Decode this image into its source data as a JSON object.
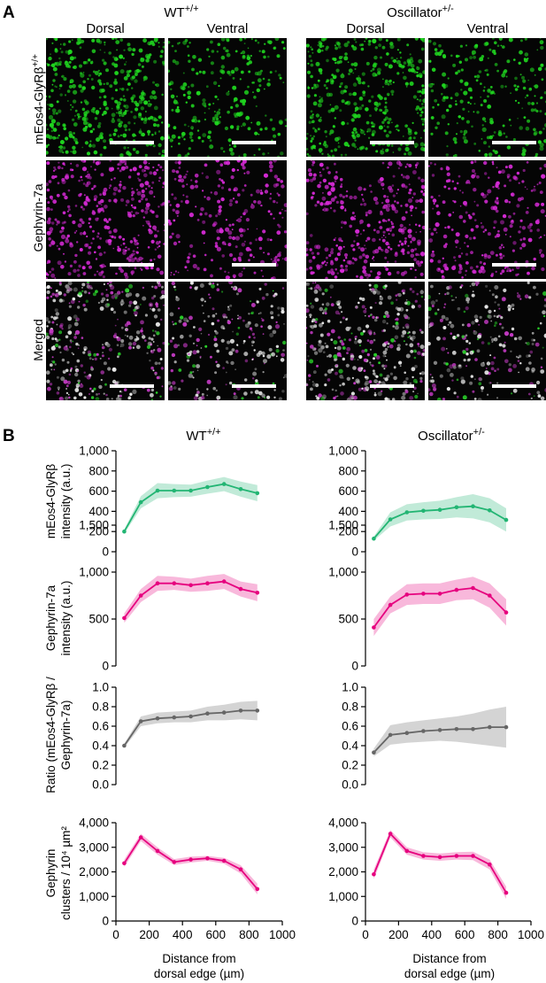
{
  "panel_a": {
    "letter": "A",
    "genotypes": [
      {
        "name": "WT",
        "sup": "+/+"
      },
      {
        "name": "Oscillator",
        "sup": "+/-"
      }
    ],
    "columns": [
      "Dorsal",
      "Ventral",
      "Dorsal",
      "Ventral"
    ],
    "rows": [
      {
        "label": "mEos4-GlyRβ",
        "sup": "+/+",
        "color": "#1fd41f"
      },
      {
        "label": "Gephyrin-7a",
        "sup": "",
        "color": "#d42ad4"
      },
      {
        "label": "Merged",
        "sup": "",
        "color": "#e8e8e8"
      }
    ]
  },
  "panel_b": {
    "letter": "B",
    "genotypes": [
      {
        "name": "WT",
        "sup": "+/+"
      },
      {
        "name": "Oscillator",
        "sup": "+/-"
      }
    ],
    "xlabel_line1": "Distance from",
    "xlabel_line2": "dorsal edge (µm)",
    "x_ticks": [
      "0",
      "200",
      "400",
      "600",
      "800",
      "1000"
    ],
    "row_ylabels": [
      [
        "mEos4-GlyRβ",
        "intensity (a.u.)"
      ],
      [
        "Gephyrin-7a",
        "intensity (a.u.)"
      ],
      [
        "Ratio (mEos4-GlyRβ /",
        "Gephyrin-7a)"
      ],
      [
        "Gephyrin",
        "clusters / 10⁴ µm²"
      ]
    ]
  },
  "chart_data": [
    {
      "type": "line",
      "panel": "WT +/+",
      "row": "mEos4-GlyRβ intensity (a.u.)",
      "color": "#22b573",
      "x": [
        50,
        150,
        250,
        350,
        450,
        550,
        650,
        750,
        850
      ],
      "y": [
        200,
        490,
        605,
        605,
        605,
        640,
        670,
        620,
        580
      ],
      "lower": [
        180,
        430,
        530,
        540,
        545,
        575,
        600,
        545,
        500
      ],
      "upper": [
        220,
        550,
        680,
        670,
        665,
        705,
        740,
        695,
        660
      ],
      "ylim": [
        0,
        1000
      ],
      "yticks": [
        "0",
        "200",
        "400",
        "600",
        "800",
        "1,000"
      ],
      "xlim": [
        0,
        1000
      ]
    },
    {
      "type": "line",
      "panel": "Oscillator +/-",
      "row": "mEos4-GlyRβ intensity (a.u.)",
      "color": "#22b573",
      "x": [
        50,
        150,
        250,
        350,
        450,
        550,
        650,
        750,
        850
      ],
      "y": [
        130,
        320,
        390,
        405,
        415,
        440,
        450,
        410,
        315
      ],
      "lower": [
        110,
        250,
        310,
        320,
        325,
        340,
        330,
        290,
        200
      ],
      "upper": [
        150,
        390,
        470,
        490,
        505,
        540,
        570,
        530,
        430
      ],
      "ylim": [
        0,
        1000
      ],
      "yticks": [
        "0",
        "200",
        "400",
        "600",
        "800",
        "1,000"
      ],
      "xlim": [
        0,
        1000
      ]
    },
    {
      "type": "line",
      "panel": "WT +/+",
      "row": "Gephyrin-7a intensity (a.u.)",
      "color": "#e6007e",
      "x": [
        50,
        150,
        250,
        350,
        450,
        550,
        650,
        750,
        850
      ],
      "y": [
        510,
        750,
        880,
        880,
        860,
        880,
        900,
        820,
        780
      ],
      "lower": [
        460,
        680,
        800,
        810,
        790,
        800,
        820,
        740,
        690
      ],
      "upper": [
        560,
        820,
        960,
        950,
        930,
        960,
        980,
        900,
        870
      ],
      "ylim": [
        0,
        1500
      ],
      "yticks": [
        "0",
        "500",
        "1,000",
        "1,500"
      ],
      "xlim": [
        0,
        1000
      ]
    },
    {
      "type": "line",
      "panel": "Oscillator +/-",
      "row": "Gephyrin-7a intensity (a.u.)",
      "color": "#e6007e",
      "x": [
        50,
        150,
        250,
        350,
        450,
        550,
        650,
        750,
        850
      ],
      "y": [
        410,
        650,
        760,
        770,
        770,
        810,
        830,
        750,
        570
      ],
      "lower": [
        320,
        560,
        650,
        660,
        660,
        700,
        710,
        620,
        430
      ],
      "upper": [
        500,
        740,
        870,
        880,
        880,
        920,
        950,
        880,
        710
      ],
      "ylim": [
        0,
        1500
      ],
      "yticks": [
        "0",
        "500",
        "1,000",
        "1,500"
      ],
      "xlim": [
        0,
        1000
      ]
    },
    {
      "type": "line",
      "panel": "WT +/+",
      "row": "Ratio (mEos4-GlyRβ / Gephyrin-7a)",
      "color": "#666666",
      "x": [
        50,
        150,
        250,
        350,
        450,
        550,
        650,
        750,
        850
      ],
      "y": [
        0.4,
        0.65,
        0.68,
        0.69,
        0.7,
        0.73,
        0.74,
        0.76,
        0.76
      ],
      "lower": [
        0.38,
        0.6,
        0.63,
        0.64,
        0.64,
        0.66,
        0.66,
        0.67,
        0.66
      ],
      "upper": [
        0.42,
        0.7,
        0.74,
        0.75,
        0.76,
        0.8,
        0.82,
        0.85,
        0.86
      ],
      "ylim": [
        0,
        1.0
      ],
      "yticks": [
        "0.0",
        "0.2",
        "0.4",
        "0.6",
        "0.8",
        "1.0"
      ],
      "xlim": [
        0,
        1000
      ]
    },
    {
      "type": "line",
      "panel": "Oscillator +/-",
      "row": "Ratio (mEos4-GlyRβ / Gephyrin-7a)",
      "color": "#666666",
      "x": [
        50,
        150,
        250,
        350,
        450,
        550,
        650,
        750,
        850
      ],
      "y": [
        0.33,
        0.51,
        0.53,
        0.55,
        0.56,
        0.57,
        0.57,
        0.59,
        0.59
      ],
      "lower": [
        0.29,
        0.41,
        0.43,
        0.44,
        0.45,
        0.44,
        0.42,
        0.4,
        0.38
      ],
      "upper": [
        0.37,
        0.61,
        0.64,
        0.66,
        0.68,
        0.7,
        0.73,
        0.77,
        0.8
      ],
      "ylim": [
        0,
        1.0
      ],
      "yticks": [
        "0.0",
        "0.2",
        "0.4",
        "0.6",
        "0.8",
        "1.0"
      ],
      "xlim": [
        0,
        1000
      ]
    },
    {
      "type": "line",
      "panel": "WT +/+",
      "row": "Gephyrin clusters / 10⁴ µm²",
      "color": "#e6007e",
      "x": [
        50,
        150,
        250,
        350,
        450,
        550,
        650,
        750,
        850
      ],
      "y": [
        2350,
        3400,
        2850,
        2400,
        2500,
        2550,
        2450,
        2100,
        1300
      ],
      "lower": [
        2200,
        3250,
        2700,
        2280,
        2380,
        2450,
        2330,
        1930,
        1080
      ],
      "upper": [
        2500,
        3550,
        3000,
        2520,
        2620,
        2650,
        2570,
        2270,
        1520
      ],
      "ylim": [
        0,
        4000
      ],
      "yticks": [
        "0",
        "1,000",
        "2,000",
        "3,000",
        "4,000"
      ],
      "xlim": [
        0,
        1000
      ]
    },
    {
      "type": "line",
      "panel": "Oscillator +/-",
      "row": "Gephyrin clusters / 10⁴ µm²",
      "color": "#e6007e",
      "x": [
        50,
        150,
        250,
        350,
        450,
        550,
        650,
        750,
        850
      ],
      "y": [
        1900,
        3550,
        2850,
        2650,
        2600,
        2650,
        2650,
        2300,
        1150
      ],
      "lower": [
        1700,
        3400,
        2700,
        2500,
        2450,
        2500,
        2480,
        2100,
        900
      ],
      "upper": [
        2100,
        3700,
        3000,
        2800,
        2750,
        2800,
        2820,
        2500,
        1400
      ],
      "ylim": [
        0,
        4000
      ],
      "yticks": [
        "0",
        "1,000",
        "2,000",
        "3,000",
        "4,000"
      ],
      "xlim": [
        0,
        1000
      ]
    }
  ]
}
